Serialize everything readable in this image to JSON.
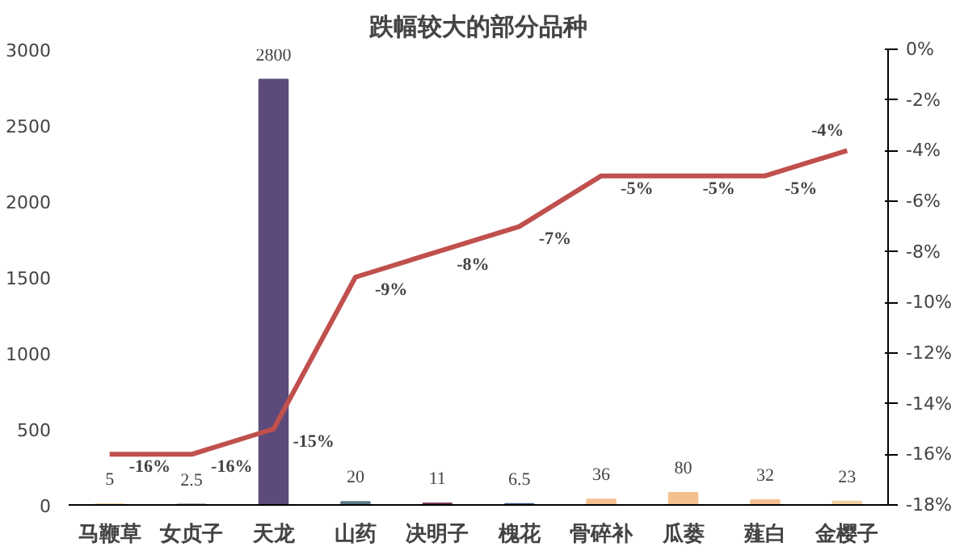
{
  "chart_data": {
    "type": "bar",
    "title": "跌幅较大的部分品种",
    "categories": [
      "马鞭草",
      "女贞子",
      "天龙",
      "山药",
      "决明子",
      "槐花",
      "骨碎补",
      "瓜蒌",
      "薤白",
      "金樱子"
    ],
    "series": [
      {
        "values": [
          5,
          2.5,
          2800,
          20,
          11,
          6.5,
          36,
          80,
          32,
          23
        ],
        "colors": [
          "#f0c890",
          "#4f6b80",
          "#5b4a7a",
          "#5a7a8a",
          "#7a3a5a",
          "#3a5a8a",
          "#f5c090",
          "#f5c090",
          "#f5c090",
          "#f2d0a0"
        ],
        "value_labels": [
          "5",
          "2.5",
          "2800",
          "20",
          "11",
          "6.5",
          "36",
          "80",
          "32",
          "23"
        ]
      },
      {
        "type": "line",
        "axis": "y2",
        "color": "#c0504d",
        "values": [
          -16,
          -16,
          -15,
          -9,
          -8,
          -7,
          -5,
          -5,
          -5,
          -4
        ],
        "value_labels": [
          "-16%",
          "-16%",
          "-15%",
          "-9%",
          "-8%",
          "-7%",
          "-5%",
          "-5%",
          "-5%",
          "-4%"
        ]
      }
    ],
    "ylim": [
      0,
      3000
    ],
    "yticks": [
      0,
      500,
      1000,
      1500,
      2000,
      2500,
      3000
    ],
    "y2lim": [
      -18,
      0
    ],
    "y2ticks": [
      {
        "value": 0,
        "label": "0%"
      },
      {
        "value": -2,
        "label": "-2%"
      },
      {
        "value": -4,
        "label": "-4%"
      },
      {
        "value": -6,
        "label": "-6%"
      },
      {
        "value": -8,
        "label": "-8%"
      },
      {
        "value": -10,
        "label": "-10%"
      },
      {
        "value": -12,
        "label": "-12%"
      },
      {
        "value": -14,
        "label": "-14%"
      },
      {
        "value": -16,
        "label": "-16%"
      },
      {
        "value": -18,
        "label": "-18%"
      }
    ],
    "grid": false
  }
}
